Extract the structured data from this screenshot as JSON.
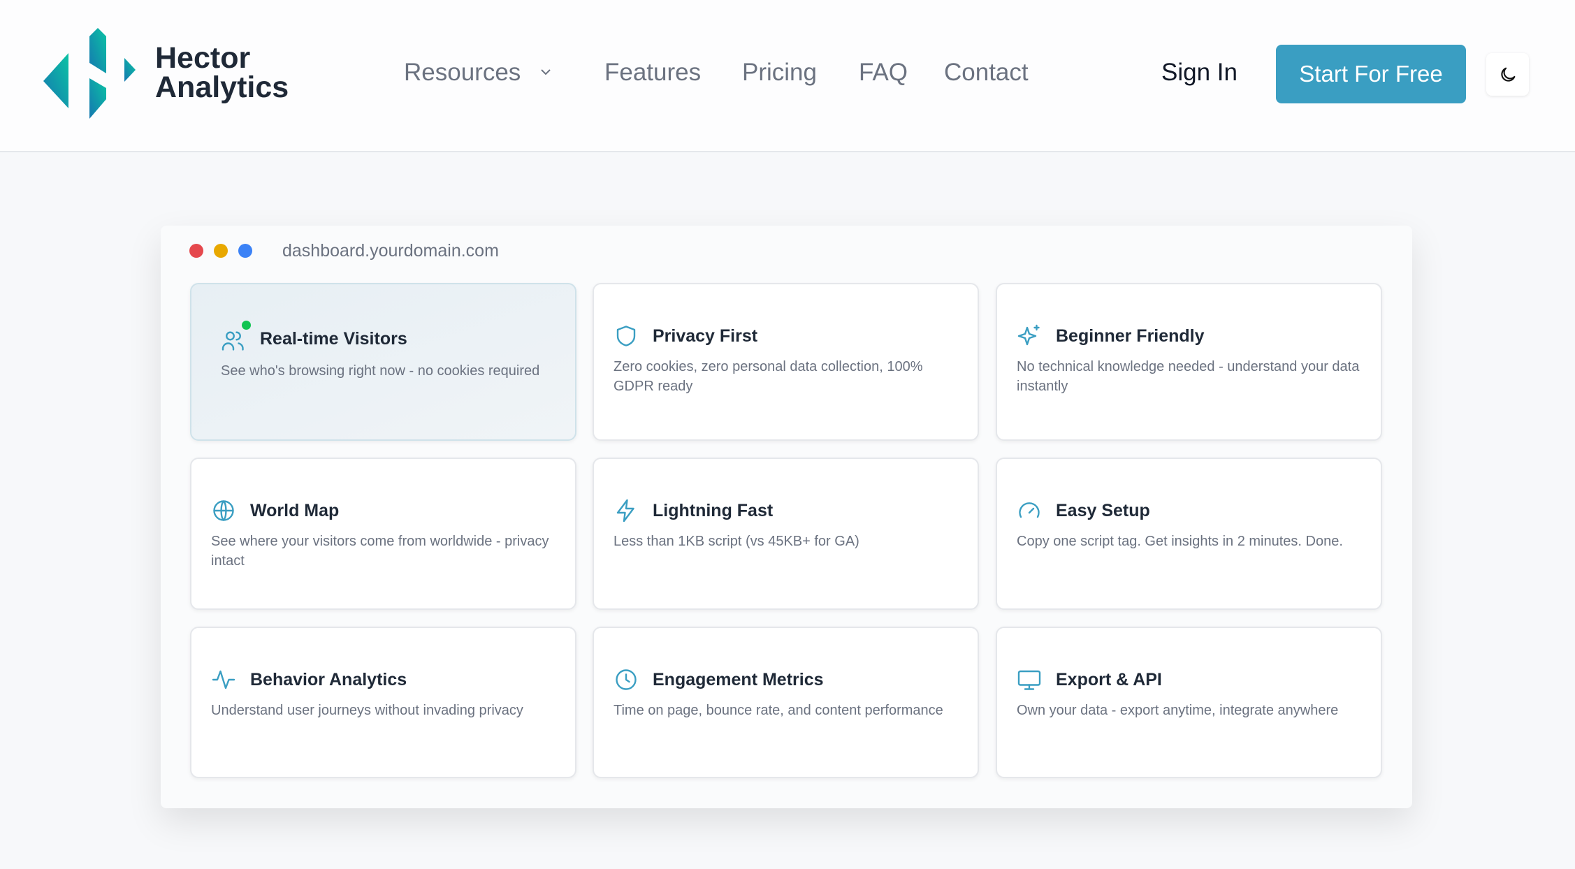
{
  "brand": {
    "name_line1": "Hector",
    "name_line2": "Analytics",
    "gradient": [
      "#0bc3a4",
      "#1577b0"
    ]
  },
  "nav": [
    {
      "label": "Resources",
      "icon": "chevron-down-icon"
    },
    {
      "label": "Features"
    },
    {
      "label": "Pricing"
    },
    {
      "label": "FAQ"
    },
    {
      "label": "Contact"
    }
  ],
  "actions": {
    "sign_in": "Sign In",
    "cta": "Start For Free",
    "theme_icon": "moon-icon"
  },
  "accent": "#3a9ec2",
  "window": {
    "url": "dashboard.yourdomain.com",
    "dots": [
      "#e5484d",
      "#e8a800",
      "#3b82f6"
    ]
  },
  "cards": [
    {
      "icon": "users-icon",
      "title": "Real-time Visitors",
      "desc": "See who's browsing right now - no cookies required",
      "live": true
    },
    {
      "icon": "shield-icon",
      "title": "Privacy First",
      "desc": "Zero cookies, zero personal data collection, 100% GDPR ready"
    },
    {
      "icon": "sparkles-icon",
      "title": "Beginner Friendly",
      "desc": "No technical knowledge needed - understand your data instantly"
    },
    {
      "icon": "globe-icon",
      "title": "World Map",
      "desc": "See where your visitors come from worldwide - privacy intact"
    },
    {
      "icon": "lightning-icon",
      "title": "Lightning Fast",
      "desc": "Less than 1KB script (vs 45KB+ for GA)"
    },
    {
      "icon": "gauge-icon",
      "title": "Easy Setup",
      "desc": "Copy one script tag. Get insights in 2 minutes. Done."
    },
    {
      "icon": "activity-icon",
      "title": "Behavior Analytics",
      "desc": "Understand user journeys without invading privacy"
    },
    {
      "icon": "clock-icon",
      "title": "Engagement Metrics",
      "desc": "Time on page, bounce rate, and content performance"
    },
    {
      "icon": "monitor-icon",
      "title": "Export & API",
      "desc": "Own your data - export anytime, integrate anywhere"
    }
  ]
}
